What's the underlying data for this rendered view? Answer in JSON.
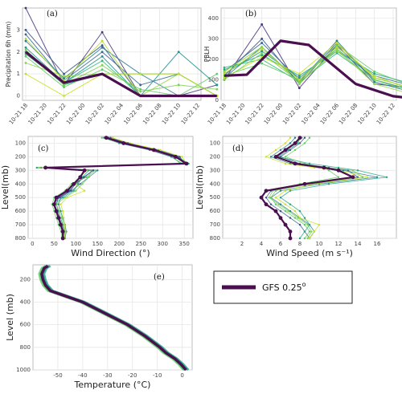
{
  "chart_data": [
    {
      "id": "a",
      "type": "line",
      "panel_label": "(a)",
      "xlabel": "",
      "ylabel": "Precipitation 6h (mm)",
      "categories": [
        "10-21 18",
        "10-21 20",
        "10-21 22",
        "10-22 00",
        "10-22 02",
        "10-22 04",
        "10-22 06",
        "10-22 08",
        "10-22 10",
        "10-22 12"
      ],
      "ylim": [
        -0.2,
        4.0
      ],
      "yticks": [
        0,
        1,
        2,
        3
      ],
      "grid": true,
      "ensemble_x": [
        0,
        2,
        4,
        6,
        8,
        10
      ],
      "reference": {
        "name": "GFS 0.25°",
        "x": [
          0,
          2,
          4,
          6,
          8,
          10
        ],
        "values": [
          2.0,
          0.6,
          1.0,
          0.0,
          0.0,
          0.0
        ]
      },
      "ensemble": [
        [
          4.0,
          0.5,
          2.9,
          0.0,
          0.0,
          0.5
        ],
        [
          3.0,
          1.0,
          2.3,
          0.0,
          0.0,
          0.0
        ],
        [
          2.8,
          0.7,
          2.0,
          0.5,
          1.0,
          0.0
        ],
        [
          2.5,
          0.8,
          2.2,
          1.0,
          0.0,
          0.0
        ],
        [
          2.2,
          0.6,
          1.8,
          0.0,
          2.0,
          0.5
        ],
        [
          2.0,
          0.5,
          1.0,
          1.0,
          1.0,
          0.0
        ],
        [
          1.9,
          0.6,
          1.6,
          0.0,
          0.0,
          0.0
        ],
        [
          1.8,
          0.4,
          1.2,
          0.3,
          0.0,
          1.0
        ],
        [
          1.5,
          0.9,
          1.0,
          0.0,
          1.0,
          0.0
        ],
        [
          1.0,
          0.0,
          1.0,
          1.0,
          1.0,
          0.0
        ],
        [
          2.6,
          0.7,
          2.5,
          0.0,
          0.0,
          0.0
        ],
        [
          2.1,
          0.5,
          1.4,
          0.2,
          0.5,
          0.3
        ]
      ]
    },
    {
      "id": "b",
      "type": "line",
      "panel_label": "(b)",
      "xlabel": "",
      "ylabel": "PBLH",
      "categories": [
        "10-21 18",
        "10-21 20",
        "10-21 22",
        "10-22 00",
        "10-22 02",
        "10-22 04",
        "10-22 06",
        "10-22 08",
        "10-22 10",
        "10-22 12"
      ],
      "ylim": [
        0,
        450
      ],
      "yticks": [
        0,
        100,
        200,
        300,
        400
      ],
      "grid": true,
      "ensemble_x": [
        0,
        2,
        4,
        6,
        8,
        10
      ],
      "reference": {
        "name": "GFS 0.25°",
        "x": [
          0,
          1.2,
          3,
          4.5,
          7,
          9,
          10
        ],
        "values": [
          120,
          125,
          290,
          270,
          80,
          20,
          10
        ]
      },
      "ensemble": [
        [
          100,
          370,
          60,
          270,
          80,
          60
        ],
        [
          120,
          300,
          80,
          280,
          100,
          50
        ],
        [
          140,
          280,
          100,
          260,
          120,
          70
        ],
        [
          110,
          260,
          90,
          290,
          90,
          40
        ],
        [
          130,
          240,
          110,
          250,
          110,
          60
        ],
        [
          150,
          220,
          120,
          240,
          130,
          80
        ],
        [
          160,
          200,
          90,
          230,
          100,
          50
        ],
        [
          120,
          180,
          100,
          270,
          140,
          70
        ],
        [
          140,
          260,
          80,
          250,
          80,
          30
        ],
        [
          110,
          210,
          130,
          280,
          110,
          60
        ],
        [
          130,
          250,
          100,
          260,
          120,
          50
        ],
        [
          100,
          230,
          90,
          240,
          100,
          40
        ]
      ]
    },
    {
      "id": "c",
      "type": "line",
      "panel_label": "(c)",
      "xlabel": "Wind Direction (°)",
      "ylabel": "Level(mb)",
      "xlim": [
        -10,
        370
      ],
      "xticks": [
        0,
        50,
        100,
        150,
        200,
        250,
        300,
        350
      ],
      "ylim": [
        800,
        50
      ],
      "yticks": [
        100,
        200,
        300,
        400,
        500,
        600,
        700,
        800
      ],
      "grid": true,
      "levels": [
        60,
        100,
        150,
        200,
        250,
        280,
        300,
        350,
        400,
        450,
        500,
        550,
        600,
        650,
        700,
        750,
        800
      ],
      "reference": {
        "name": "GFS 0.25°",
        "values": [
          170,
          210,
          280,
          330,
          355,
          30,
          120,
          110,
          95,
          80,
          55,
          50,
          55,
          60,
          65,
          70,
          70
        ]
      },
      "ensemble": [
        [
          180,
          220,
          290,
          340,
          350,
          20,
          140,
          120,
          100,
          85,
          60,
          55,
          60,
          62,
          68,
          72,
          70
        ],
        [
          165,
          200,
          270,
          320,
          345,
          40,
          150,
          130,
          110,
          90,
          65,
          60,
          65,
          70,
          75,
          78,
          75
        ],
        [
          175,
          215,
          285,
          335,
          360,
          10,
          130,
          115,
          105,
          95,
          70,
          50,
          58,
          65,
          70,
          74,
          72
        ],
        [
          160,
          205,
          275,
          325,
          340,
          50,
          145,
          125,
          90,
          75,
          50,
          45,
          50,
          55,
          60,
          66,
          68
        ],
        [
          185,
          225,
          295,
          345,
          355,
          25,
          125,
          110,
          100,
          120,
          80,
          65,
          70,
          72,
          74,
          76,
          74
        ],
        [
          170,
          210,
          280,
          330,
          350,
          15,
          135,
          130,
          115,
          100,
          75,
          55,
          62,
          68,
          72,
          75,
          73
        ],
        [
          175,
          220,
          285,
          338,
          352,
          35,
          140,
          118,
          98,
          88,
          62,
          48,
          54,
          60,
          66,
          70,
          71
        ]
      ]
    },
    {
      "id": "d",
      "type": "line",
      "panel_label": "(d)",
      "xlabel": "Wind Speed (m s⁻¹)",
      "ylabel": "Level(mb)",
      "xlim": [
        0,
        18
      ],
      "xticks": [
        2,
        4,
        6,
        8,
        10,
        12,
        14,
        16
      ],
      "ylim": [
        800,
        50
      ],
      "yticks": [
        100,
        200,
        300,
        400,
        500,
        600,
        700,
        800
      ],
      "grid": true,
      "levels": [
        60,
        100,
        150,
        200,
        250,
        280,
        300,
        350,
        400,
        450,
        500,
        550,
        600,
        650,
        700,
        750,
        800
      ],
      "reference": {
        "name": "GFS 0.25°",
        "values": [
          8.0,
          7.5,
          6.5,
          5.5,
          7.5,
          10.5,
          12.0,
          13.5,
          8.5,
          4.5,
          4.0,
          4.5,
          5.5,
          6.0,
          6.5,
          7.0,
          7.0
        ]
      },
      "ensemble": [
        [
          8.5,
          8.0,
          7.0,
          6.0,
          8.0,
          11.0,
          13.0,
          14.0,
          9.0,
          5.0,
          4.5,
          5.0,
          6.0,
          7.0,
          8.0,
          8.5,
          9.0
        ],
        [
          7.5,
          7.0,
          6.0,
          5.0,
          7.0,
          10.0,
          12.5,
          16.0,
          10.0,
          6.0,
          5.0,
          6.0,
          7.0,
          8.0,
          9.0,
          9.5,
          9.0
        ],
        [
          8.0,
          7.8,
          6.8,
          5.8,
          9.0,
          12.0,
          14.0,
          17.0,
          11.0,
          7.0,
          6.0,
          7.0,
          8.0,
          8.5,
          9.0,
          8.5,
          8.0
        ],
        [
          9.0,
          8.5,
          7.5,
          6.5,
          8.5,
          10.5,
          11.0,
          12.0,
          8.0,
          5.5,
          5.0,
          5.5,
          6.5,
          7.5,
          8.5,
          9.0,
          8.5
        ],
        [
          7.0,
          6.5,
          5.5,
          4.5,
          6.5,
          9.5,
          12.0,
          15.0,
          9.5,
          6.5,
          5.5,
          6.5,
          7.5,
          8.0,
          10.0,
          9.5,
          9.0
        ],
        [
          8.2,
          7.6,
          6.6,
          5.6,
          7.6,
          10.8,
          13.5,
          14.5,
          9.2,
          5.2,
          4.8,
          5.8,
          6.8,
          7.8,
          8.8,
          9.2,
          8.8
        ]
      ]
    },
    {
      "id": "e",
      "type": "line",
      "panel_label": "(e)",
      "xlabel": "Temperature (°C)",
      "ylabel": "Level (mb)",
      "xlim": [
        -60,
        4
      ],
      "xticks": [
        -50,
        -40,
        -30,
        -20,
        -10,
        0
      ],
      "ylim": [
        1000,
        70
      ],
      "yticks": [
        200,
        400,
        600,
        800,
        1000
      ],
      "grid": true,
      "levels": [
        80,
        100,
        150,
        200,
        250,
        300,
        400,
        500,
        600,
        700,
        800,
        850,
        900,
        950,
        1000
      ],
      "reference": {
        "name": "GFS 0.25°",
        "values": [
          -54.0,
          -55.5,
          -56.5,
          -56.0,
          -55.0,
          -53.0,
          -40.0,
          -31.0,
          -22.0,
          -15.0,
          -9.0,
          -6.5,
          -3.0,
          -0.5,
          1.5
        ]
      },
      "ensemble": [
        [
          -53.5,
          -55.0,
          -56.0,
          -55.5,
          -54.5,
          -52.5,
          -39.5,
          -30.5,
          -21.5,
          -14.5,
          -8.5,
          -6.0,
          -2.5,
          0.0,
          2.0
        ],
        [
          -54.5,
          -56.0,
          -57.0,
          -56.5,
          -55.5,
          -53.5,
          -40.5,
          -31.5,
          -22.5,
          -15.5,
          -9.5,
          -7.0,
          -3.5,
          -1.0,
          1.0
        ],
        [
          -53.0,
          -54.5,
          -55.5,
          -55.0,
          -54.0,
          -52.0,
          -39.0,
          -30.0,
          -21.0,
          -14.0,
          -8.0,
          -5.5,
          -2.0,
          0.5,
          2.5
        ],
        [
          -55.0,
          -56.5,
          -57.5,
          -57.0,
          -56.0,
          -54.0,
          -41.0,
          -32.0,
          -23.0,
          -16.0,
          -10.0,
          -7.5,
          -4.0,
          -1.5,
          0.5
        ]
      ]
    }
  ],
  "legend": {
    "label": "GFS 0.25",
    "superscript": "o",
    "color": "#4a0f4e"
  },
  "colors": {
    "reference": "#4a0f4e",
    "ensemble": [
      "#46317e",
      "#3b528b",
      "#31688e",
      "#287c8e",
      "#21918c",
      "#20a386",
      "#35b779",
      "#5ec962",
      "#90d743",
      "#c8e020",
      "#b5de2b",
      "#7ad151"
    ]
  }
}
